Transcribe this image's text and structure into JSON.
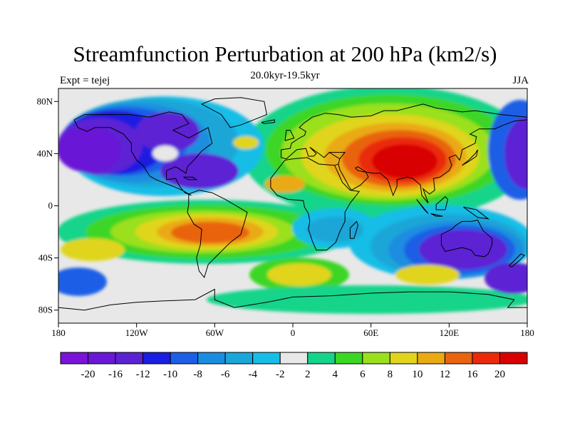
{
  "title": "Streamfunction Perturbation at 200 hPa (km2/s)",
  "left_label": "Expt = tejej",
  "center_label": "20.0kyr-19.5kyr",
  "right_label": "JJA",
  "axes": {
    "x_ticks": [
      {
        "lon": -180,
        "label": "180"
      },
      {
        "lon": -120,
        "label": "120W"
      },
      {
        "lon": -60,
        "label": "60W"
      },
      {
        "lon": 0,
        "label": "0"
      },
      {
        "lon": 60,
        "label": "60E"
      },
      {
        "lon": 120,
        "label": "120E"
      },
      {
        "lon": 180,
        "label": "180"
      }
    ],
    "y_ticks": [
      {
        "lat": 80,
        "label": "80N"
      },
      {
        "lat": 40,
        "label": "40N"
      },
      {
        "lat": 0,
        "label": "0"
      },
      {
        "lat": -40,
        "label": "40S"
      },
      {
        "lat": -80,
        "label": "80S"
      }
    ],
    "lon_range": [
      -180,
      180
    ],
    "lat_range": [
      -90,
      90
    ]
  },
  "colorbar": {
    "colors": [
      "#7a12d8",
      "#6a18d6",
      "#5b22d4",
      "#1a1ee0",
      "#1c5fe6",
      "#1b8de0",
      "#1aa6d8",
      "#18bde6",
      "#e8e8e8",
      "#15d48a",
      "#3cd625",
      "#9be01c",
      "#e0d51d",
      "#eaaa14",
      "#e96310",
      "#ea2a0a",
      "#d80000"
    ],
    "labels": [
      "-20",
      "-16",
      "-12",
      "-10",
      "-8",
      "-6",
      "-4",
      "-2",
      "2",
      "4",
      "6",
      "8",
      "10",
      "12",
      "16",
      "20"
    ]
  },
  "map_colors": {
    "background": "#e8e8e8",
    "coastline": "#000000"
  }
}
